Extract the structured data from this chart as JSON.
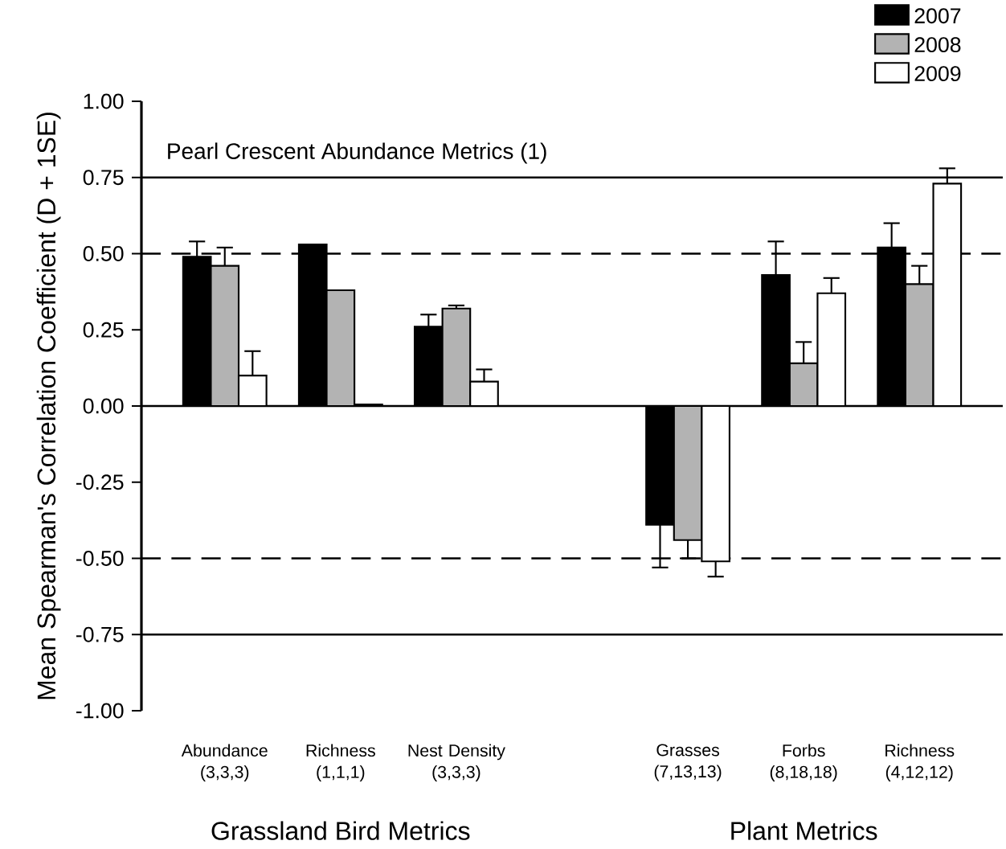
{
  "chart_data": {
    "type": "bar",
    "title": "Pearl Crescent Abundance Metrics (1)",
    "ylabel": "Mean Spearman's Correlation Coefficient (D + 1SE)",
    "categories": [
      "Abundance (3,3,3)",
      "Richness (1,1,1)",
      "Nest Density (3,3,3)",
      null,
      "Grasses (7,13,13)",
      "Forbs (8,18,18)",
      "Richness (4,12,12)"
    ],
    "series": [
      {
        "name": "2007",
        "color": "#000000",
        "values": [
          0.49,
          0.53,
          0.26,
          null,
          -0.39,
          0.43,
          0.52
        ],
        "errors": [
          [
            0.49,
            0.54
          ],
          null,
          [
            0.26,
            0.3
          ],
          null,
          [
            -0.53,
            -0.39
          ],
          [
            0.43,
            0.54
          ],
          [
            0.52,
            0.6
          ]
        ]
      },
      {
        "name": "2008",
        "color": "#b3b3b3",
        "values": [
          0.46,
          0.38,
          0.32,
          null,
          -0.44,
          0.14,
          0.4
        ],
        "errors": [
          [
            0.46,
            0.52
          ],
          null,
          [
            0.32,
            0.33
          ],
          null,
          [
            -0.5,
            -0.44
          ],
          [
            0.14,
            0.21
          ],
          [
            0.4,
            0.46
          ]
        ]
      },
      {
        "name": "2009",
        "color": "#ffffff",
        "values": [
          0.1,
          0.005,
          0.08,
          null,
          -0.51,
          0.37,
          0.73
        ],
        "errors": [
          [
            0.1,
            0.18
          ],
          null,
          [
            0.08,
            0.12
          ],
          null,
          [
            -0.56,
            -0.51
          ],
          [
            0.37,
            0.42
          ],
          [
            0.73,
            0.78
          ]
        ]
      }
    ],
    "ylim": [
      -1.0,
      1.0
    ],
    "yticks": [
      {
        "value": -1.0,
        "label": "-1.00"
      },
      {
        "value": -0.75,
        "label": "-0.75"
      },
      {
        "value": -0.5,
        "label": "-0.50"
      },
      {
        "value": -0.25,
        "label": "-0.25"
      },
      {
        "value": 0,
        "label": "0.00"
      },
      {
        "value": 0.25,
        "label": "0.25"
      },
      {
        "value": 0.5,
        "label": "0.50"
      },
      {
        "value": 0.75,
        "label": "0.75"
      },
      {
        "value": 1.0,
        "label": "1.00"
      }
    ],
    "ref_lines": [
      {
        "axis": "y",
        "value": 0,
        "line_style": "solid"
      },
      {
        "axis": "y",
        "value": 0.75,
        "line_style": "solid"
      },
      {
        "axis": "y",
        "value": -0.75,
        "line_style": "solid"
      },
      {
        "axis": "y",
        "value": 0.5,
        "line_style": "dashed"
      },
      {
        "axis": "y",
        "value": -0.5,
        "line_style": "dashed"
      }
    ],
    "annotations": [
      "Grassland Bird Metrics",
      "Plant Metrics"
    ],
    "legend": "top right"
  }
}
